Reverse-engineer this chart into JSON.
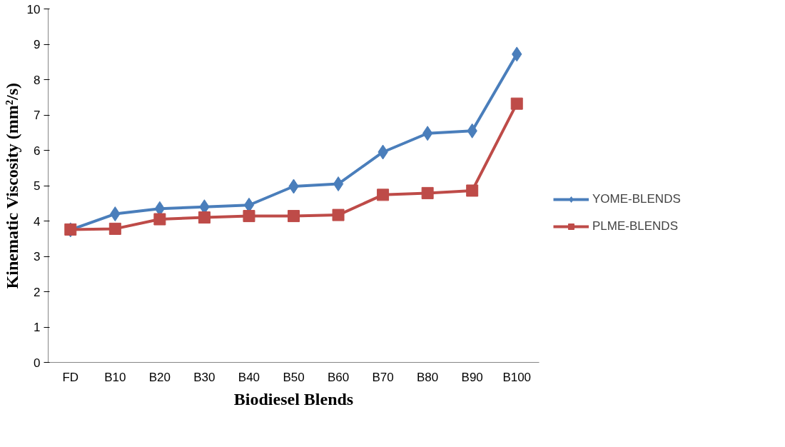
{
  "chart_data": {
    "type": "line",
    "xlabel": "Biodiesel Blends",
    "ylabel": "Kinematic Viscosity (mm²/s)",
    "categories": [
      "FD",
      "B10",
      "B20",
      "B30",
      "B40",
      "B50",
      "B60",
      "B70",
      "B80",
      "B90",
      "B100"
    ],
    "ylim": [
      0,
      10
    ],
    "yticks": [
      0,
      1,
      2,
      3,
      4,
      5,
      6,
      7,
      8,
      9,
      10
    ],
    "grid": false,
    "legend": "right",
    "line_style": "solid",
    "series": [
      {
        "name": "YOME-BLENDS",
        "color": "#4a7ebb",
        "marker": "diamond",
        "values": [
          3.75,
          4.2,
          4.35,
          4.4,
          4.45,
          4.98,
          5.05,
          5.95,
          6.48,
          6.55,
          8.72
        ]
      },
      {
        "name": "PLME-BLENDS",
        "color": "#be4b48",
        "marker": "square",
        "values": [
          3.76,
          3.78,
          4.05,
          4.1,
          4.14,
          4.14,
          4.17,
          4.74,
          4.79,
          4.86,
          7.32
        ]
      }
    ]
  }
}
